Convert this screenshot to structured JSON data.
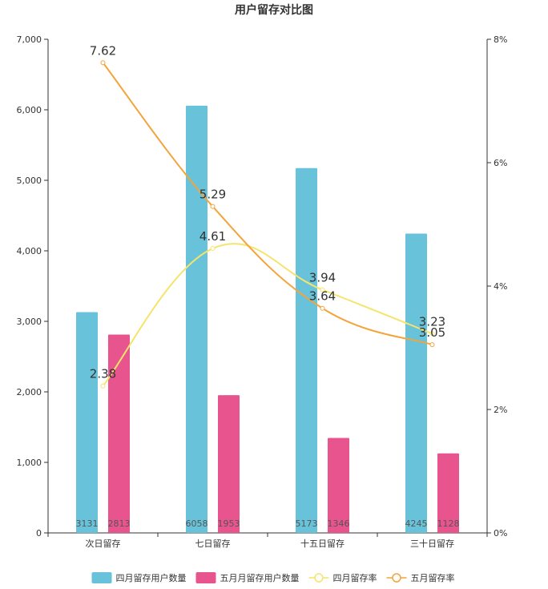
{
  "chart_data": {
    "type": "bar",
    "title": "用户留存对比图",
    "categories": [
      "次日留存",
      "七日留存",
      "十五日留存",
      "三十日留存"
    ],
    "y_left": {
      "min": 0,
      "max": 7000,
      "ticks": [
        "0",
        "1,000",
        "2,000",
        "3,000",
        "4,000",
        "5,000",
        "6,000",
        "7,000"
      ],
      "tick_values": [
        0,
        1000,
        2000,
        3000,
        4000,
        5000,
        6000,
        7000
      ]
    },
    "y_right": {
      "min": 0,
      "max": 8,
      "ticks": [
        "0%",
        "2%",
        "4%",
        "6%",
        "8%"
      ],
      "tick_values": [
        0,
        2,
        4,
        6,
        8
      ]
    },
    "series": [
      {
        "name": "四月留存用户数量",
        "type": "bar",
        "axis": "left",
        "color": "#68c2da",
        "values": [
          3131,
          6058,
          5173,
          4245
        ],
        "labels": [
          "3131",
          "6058",
          "5173",
          "4245"
        ]
      },
      {
        "name": "五月月留存用户数量",
        "type": "bar",
        "axis": "left",
        "color": "#e8558e",
        "values": [
          2813,
          1953,
          1346,
          1128
        ],
        "labels": [
          "2813",
          "1953",
          "1346",
          "1128"
        ]
      },
      {
        "name": "四月留存率",
        "type": "line",
        "axis": "right",
        "color": "#f5e46c",
        "values": [
          2.38,
          4.61,
          3.94,
          3.23
        ],
        "labels": [
          "2.38",
          "4.61",
          "3.94",
          "3.23"
        ]
      },
      {
        "name": "五月留存率",
        "type": "line",
        "axis": "right",
        "color": "#f3a43b",
        "values": [
          7.62,
          5.29,
          3.64,
          3.05
        ],
        "labels": [
          "7.62",
          "5.29",
          "3.64",
          "3.05"
        ]
      }
    ],
    "legend_position": "bottom-center",
    "grid": false
  }
}
